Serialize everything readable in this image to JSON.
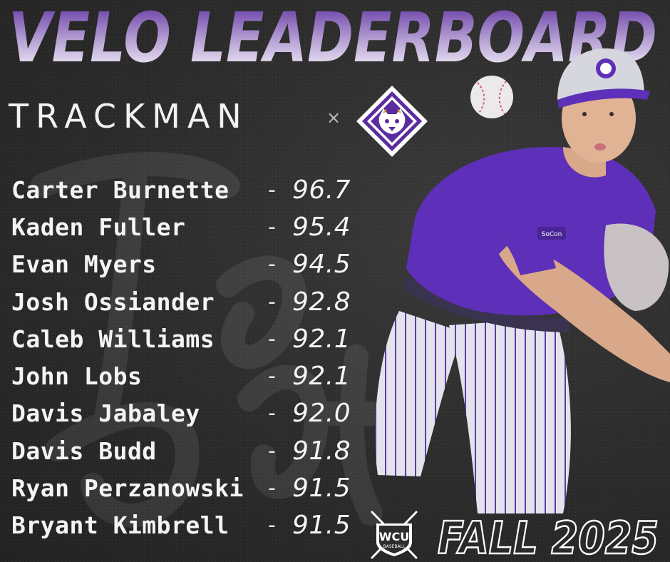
{
  "header": {
    "title": "VELO LEADERBOARD",
    "partner_brand": "TRACKMAN",
    "separator": "×"
  },
  "leaderboard": [
    {
      "name": "Carter Burnette",
      "velo": "96.7"
    },
    {
      "name": "Kaden Fuller",
      "velo": "95.4"
    },
    {
      "name": "Evan Myers",
      "velo": "94.5"
    },
    {
      "name": "Josh Ossiander",
      "velo": "92.8"
    },
    {
      "name": "Caleb Williams",
      "velo": "92.1"
    },
    {
      "name": "John Lobs",
      "velo": "92.1"
    },
    {
      "name": "Davis Jabaley",
      "velo": "92.0"
    },
    {
      "name": "Davis Budd",
      "velo": "91.8"
    },
    {
      "name": "Ryan Perzanowski",
      "velo": "91.5"
    },
    {
      "name": "Bryant Kimbrell",
      "velo": "91.5"
    }
  ],
  "row_separator": "-",
  "footer": {
    "team_logo": "WCU",
    "team_logo_sub": "BASEBALL",
    "season": "FALL 2025"
  },
  "images": {
    "mascot_logo": "catamount-diamond-icon",
    "player_photo": "pitcher-photo",
    "baseball": "baseball-icon",
    "sleeve_patch": "SoCon"
  },
  "colors": {
    "accent_purple": "#5b2c9e",
    "title_top": "#5b2c9e",
    "title_bottom": "#ffffff",
    "background": "#2d2d2d"
  }
}
